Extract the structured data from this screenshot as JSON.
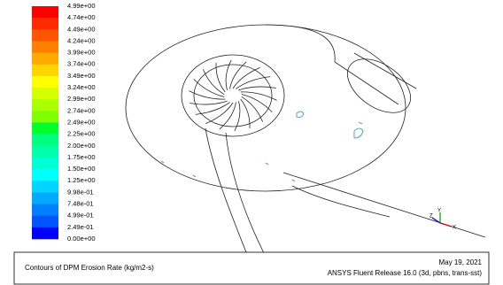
{
  "colorbar": {
    "labels": [
      "4.99e+00",
      "4.74e+00",
      "4.49e+00",
      "4.24e+00",
      "3.99e+00",
      "3.74e+00",
      "3.49e+00",
      "3.24e+00",
      "2.99e+00",
      "2.74e+00",
      "2.49e+00",
      "2.25e+00",
      "2.00e+00",
      "1.75e+00",
      "1.50e+00",
      "1.25e+00",
      "9.98e-01",
      "7.48e-01",
      "4.99e-01",
      "2.49e-01",
      "0.00e+00"
    ],
    "colors": [
      "#ff0000",
      "#ff2a00",
      "#ff5500",
      "#ff8000",
      "#ffaa00",
      "#ffd500",
      "#ffff00",
      "#d5ff00",
      "#aaff00",
      "#80ff00",
      "#00ff2a",
      "#00ff80",
      "#00ffaa",
      "#00ffd5",
      "#00ffff",
      "#00d5ff",
      "#00aaff",
      "#0080ff",
      "#0055ff",
      "#0000ff"
    ]
  },
  "triad": {
    "x": "X",
    "y": "Y",
    "z": "Z"
  },
  "footer": {
    "title": "Contours of DPM Erosion Rate (kg/m2-s)",
    "date": "May 19, 2021",
    "release": "ANSYS Fluent Release 16.0 (3d, pbns, trans-sst)"
  }
}
